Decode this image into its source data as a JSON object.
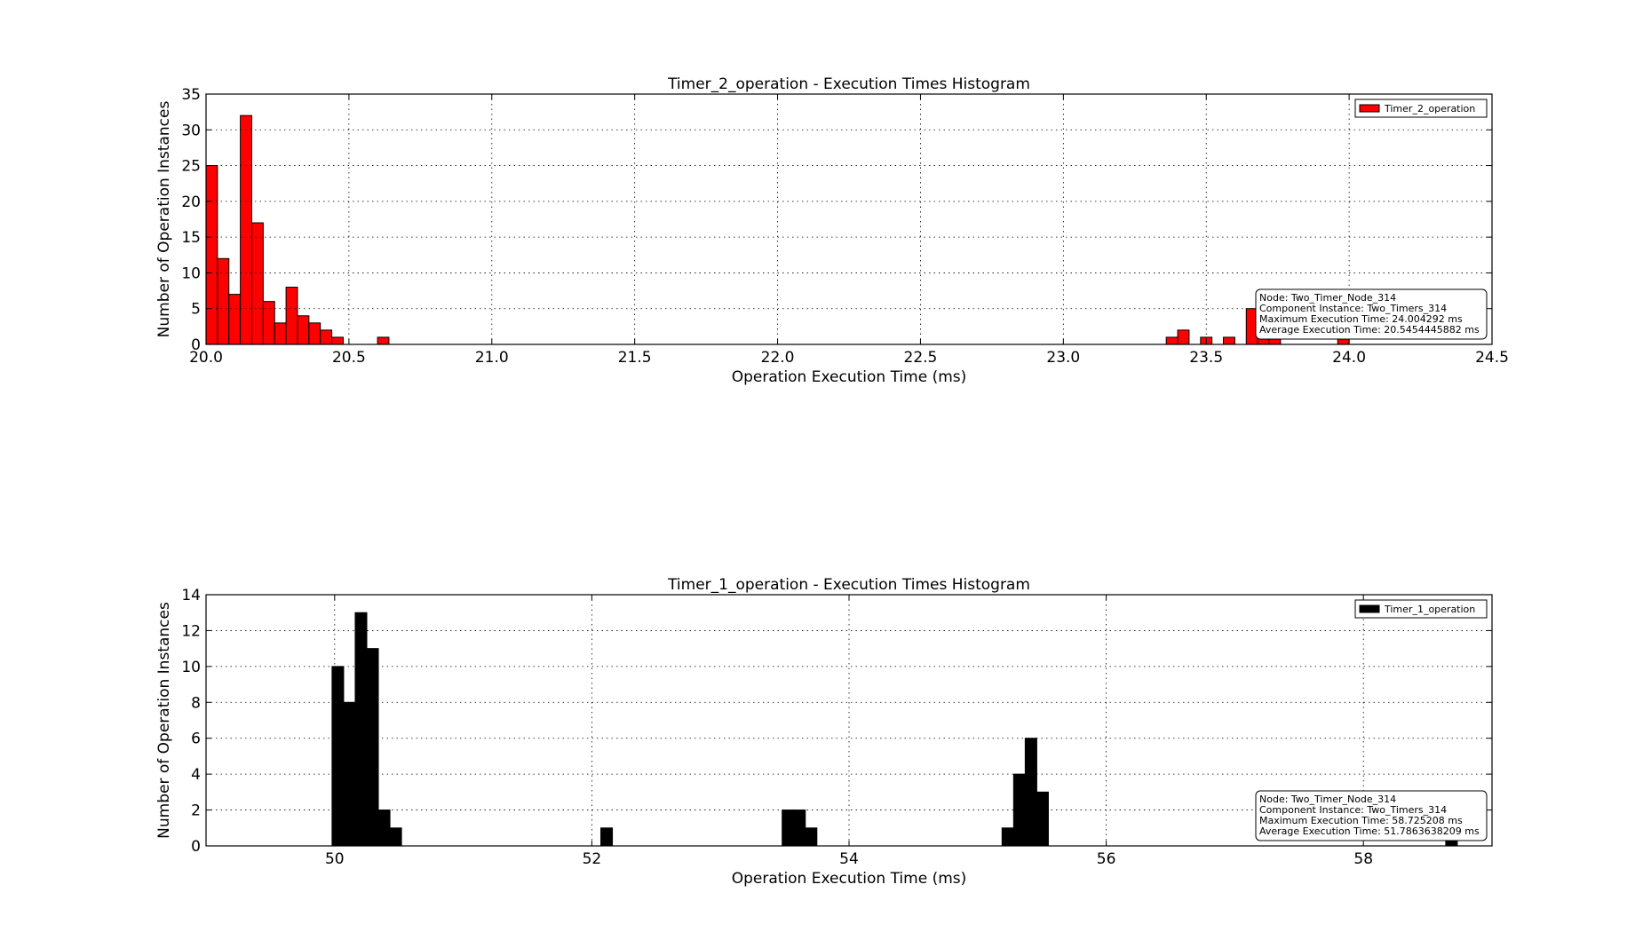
{
  "chart_data": [
    {
      "type": "bar",
      "title": "Timer_2_operation - Execution Times Histogram",
      "xlabel": "Operation Execution Time (ms)",
      "ylabel": "Number of Operation Instances",
      "xlim": [
        20.0,
        24.5
      ],
      "ylim": [
        0,
        35
      ],
      "xticks": [
        "20.0",
        "20.5",
        "21.0",
        "21.5",
        "22.0",
        "22.5",
        "23.0",
        "23.5",
        "24.0",
        "24.5"
      ],
      "yticks": [
        "0",
        "5",
        "10",
        "15",
        "20",
        "25",
        "30",
        "35"
      ],
      "grid": true,
      "legend_position": "top-right",
      "bin_width": 0.04,
      "color": "#ff0000",
      "series": [
        {
          "name": "Timer_2_operation",
          "bins": [
            [
              20.02,
              25
            ],
            [
              20.06,
              12
            ],
            [
              20.1,
              7
            ],
            [
              20.14,
              32
            ],
            [
              20.18,
              17
            ],
            [
              20.22,
              6
            ],
            [
              20.26,
              3
            ],
            [
              20.3,
              8
            ],
            [
              20.34,
              4
            ],
            [
              20.38,
              3
            ],
            [
              20.42,
              2
            ],
            [
              20.46,
              1
            ],
            [
              20.62,
              1
            ],
            [
              23.38,
              1
            ],
            [
              23.42,
              2
            ],
            [
              23.5,
              1
            ],
            [
              23.58,
              1
            ],
            [
              23.66,
              5
            ],
            [
              23.7,
              3
            ],
            [
              23.74,
              2
            ],
            [
              23.98,
              1
            ]
          ]
        }
      ],
      "info_box": [
        "Node: Two_Timer_Node_314",
        "Component Instance: Two_Timers_314",
        "Maximum Execution Time: 24.004292 ms",
        "Average Execution Time: 20.5454445882 ms"
      ]
    },
    {
      "type": "bar",
      "title": "Timer_1_operation - Execution Times Histogram",
      "xlabel": "Operation Execution Time (ms)",
      "ylabel": "Number of Operation Instances",
      "xlim": [
        49.0,
        59.0
      ],
      "ylim": [
        0,
        14
      ],
      "xticks": [
        "50",
        "52",
        "54",
        "56",
        "58"
      ],
      "xtick_values": [
        50,
        52,
        54,
        56,
        58
      ],
      "yticks": [
        "0",
        "2",
        "4",
        "6",
        "8",
        "10",
        "12",
        "14"
      ],
      "grid": true,
      "legend_position": "top-right",
      "bin_width": 0.09,
      "color": "#000000",
      "series": [
        {
          "name": "Timer_1_operation",
          "bins": [
            [
              50.025,
              10
            ],
            [
              50.115,
              8
            ],
            [
              50.205,
              13
            ],
            [
              50.295,
              11
            ],
            [
              50.385,
              2
            ],
            [
              50.475,
              1
            ],
            [
              52.115,
              1
            ],
            [
              53.525,
              2
            ],
            [
              53.615,
              2
            ],
            [
              53.705,
              1
            ],
            [
              55.235,
              1
            ],
            [
              55.325,
              4
            ],
            [
              55.415,
              6
            ],
            [
              55.505,
              3
            ],
            [
              58.685,
              1
            ]
          ]
        }
      ],
      "info_box": [
        "Node: Two_Timer_Node_314",
        "Component Instance: Two_Timers_314",
        "Maximum Execution Time: 58.725208 ms",
        "Average Execution Time: 51.7863638209 ms"
      ]
    }
  ]
}
